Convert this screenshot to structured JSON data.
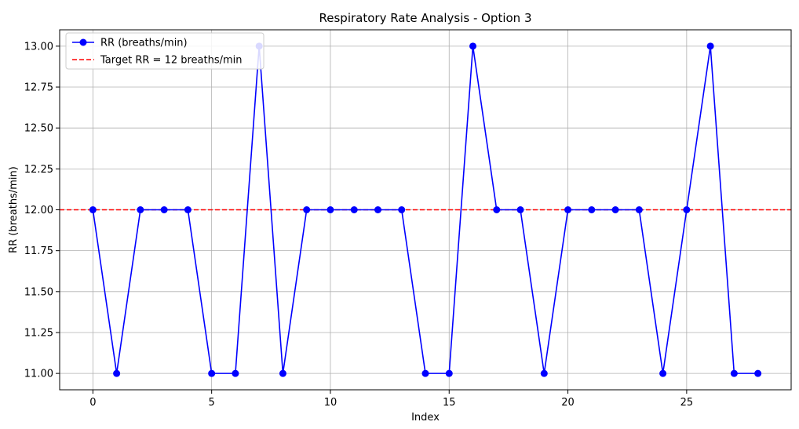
{
  "chart_data": {
    "type": "line",
    "title": "Respiratory Rate Analysis - Option 3",
    "xlabel": "Index",
    "ylabel": "RR (breaths/min)",
    "xlim": [
      -1.4,
      29.4
    ],
    "ylim": [
      10.9,
      13.1
    ],
    "x_ticks": [
      0,
      5,
      10,
      15,
      20,
      25
    ],
    "y_ticks": [
      11.0,
      11.25,
      11.5,
      11.75,
      12.0,
      12.25,
      12.5,
      12.75,
      13.0
    ],
    "x_tick_labels": [
      "0",
      "5",
      "10",
      "15",
      "20",
      "25"
    ],
    "y_tick_labels": [
      "11.00",
      "11.25",
      "11.50",
      "11.75",
      "12.00",
      "12.25",
      "12.50",
      "12.75",
      "13.00"
    ],
    "grid": true,
    "legend_position": "upper-left",
    "series": [
      {
        "name": "RR (breaths/min)",
        "color": "#0000ff",
        "marker": "circle",
        "x": [
          0,
          1,
          2,
          3,
          4,
          5,
          6,
          7,
          8,
          9,
          10,
          11,
          12,
          13,
          14,
          15,
          16,
          17,
          18,
          19,
          20,
          21,
          22,
          23,
          24,
          25,
          26,
          27,
          28
        ],
        "values": [
          12,
          11,
          12,
          12,
          12,
          11,
          11,
          13,
          11,
          12,
          12,
          12,
          12,
          12,
          11,
          11,
          13,
          12,
          12,
          11,
          12,
          12,
          12,
          12,
          11,
          12,
          13,
          11,
          11
        ]
      }
    ],
    "reference_lines": [
      {
        "name": "Target RR = 12 breaths/min",
        "y": 12,
        "color": "#ff0000",
        "style": "dashed"
      }
    ]
  }
}
